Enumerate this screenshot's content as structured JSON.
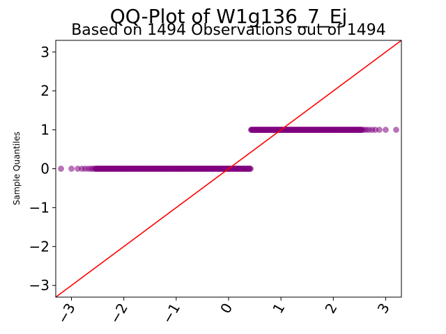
{
  "chart_data": {
    "type": "scatter",
    "title": "QQ-Plot of W1g136_7_Ej",
    "subtitle": "Based on 1494 Observations out of 1494",
    "xlabel": "",
    "ylabel": "Sample Quantiles",
    "xlim": [
      -3.3,
      3.3
    ],
    "ylim": [
      -3.3,
      3.3
    ],
    "xticks": [
      -3,
      -2,
      -1,
      0,
      1,
      2,
      3
    ],
    "yticks": [
      -3,
      -2,
      -1,
      0,
      1,
      2,
      3
    ],
    "xtick_labels": [
      "−3",
      "−2",
      "−1",
      "0",
      "1",
      "2",
      "3"
    ],
    "ytick_labels": [
      "−3",
      "−2",
      "−1",
      "0",
      "1",
      "2",
      "3"
    ],
    "grid": false,
    "series": [
      {
        "kind": "points",
        "color": "#800080",
        "opacity": 0.55,
        "groups": [
          {
            "y": 0,
            "x_dense_range": [
              -2.55,
              0.42
            ],
            "outliers": [
              -3.2,
              -3.0,
              -2.88,
              -2.8,
              -2.74,
              -2.68,
              -2.63,
              -2.59
            ]
          },
          {
            "y": 1,
            "x_dense_range": [
              0.43,
              2.55
            ],
            "outliers": [
              2.59,
              2.63,
              2.68,
              2.74,
              2.8,
              2.88,
              3.0,
              3.2
            ]
          }
        ]
      },
      {
        "kind": "reference-line",
        "color": "#ff0000",
        "slope": 1,
        "intercept": 0
      }
    ]
  }
}
